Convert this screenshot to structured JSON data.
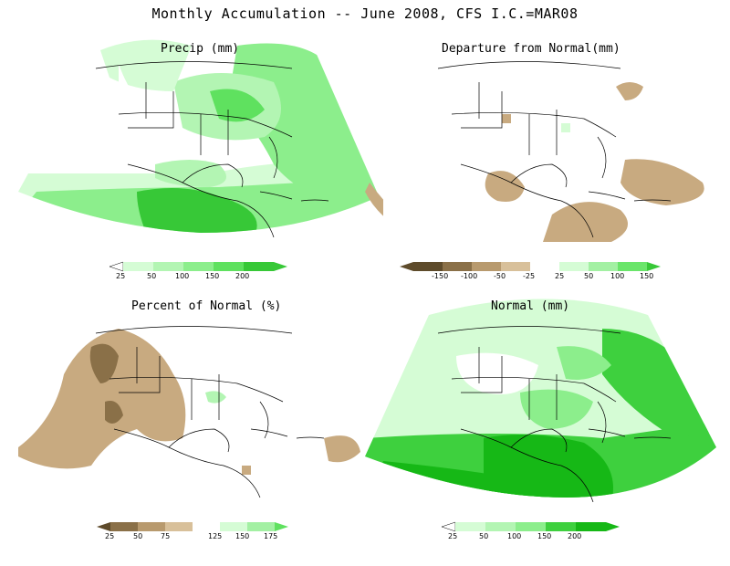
{
  "title": "Monthly Accumulation -- June 2008, CFS I.C.=MAR08",
  "panels": {
    "precip": {
      "title": "Precip (mm)",
      "colorbar": {
        "labels": [
          "25",
          "50",
          "100",
          "150",
          "200"
        ],
        "colors": [
          "#ffffff",
          "#d5fcd5",
          "#b3f5b3",
          "#8cee8c",
          "#5fe15f",
          "#37c837"
        ]
      }
    },
    "departure": {
      "title": "Departure from Normal(mm)",
      "colorbar": {
        "labels": [
          "-150",
          "-100",
          "-50",
          "-25",
          "25",
          "50",
          "100",
          "150"
        ],
        "colors": [
          "#5e4b2b",
          "#8a7048",
          "#b89a6e",
          "#d8c09a",
          "#ffffff",
          "#d5fcd5",
          "#a3f0a3",
          "#6ae56a",
          "#37c837"
        ]
      }
    },
    "percent": {
      "title": "Percent of Normal (%)",
      "colorbar": {
        "labels": [
          "25",
          "50",
          "75",
          "125",
          "150",
          "175"
        ],
        "colors": [
          "#8a7048",
          "#b89a6e",
          "#d8c09a",
          "#ffffff",
          "#d5fcd5",
          "#a3f0a3",
          "#5fe15f"
        ]
      }
    },
    "normal": {
      "title": "Normal (mm)",
      "colorbar": {
        "labels": [
          "25",
          "50",
          "100",
          "150",
          "200"
        ],
        "colors": [
          "#ffffff",
          "#d5fcd5",
          "#b3f5b3",
          "#8cee8c",
          "#3ed03e",
          "#16b816"
        ]
      }
    }
  }
}
